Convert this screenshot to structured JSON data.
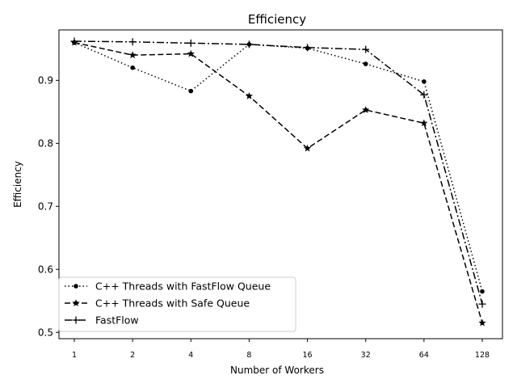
{
  "chart_data": {
    "type": "line",
    "title": "Efficiency",
    "xlabel": "Number of Workers",
    "ylabel": "Efficiency",
    "x_categories": [
      "1",
      "2",
      "4",
      "8",
      "16",
      "32",
      "64",
      "128"
    ],
    "ylim": [
      0.49,
      0.98
    ],
    "yticks": [
      0.5,
      0.6,
      0.7,
      0.8,
      0.9
    ],
    "ytick_labels": [
      "0.5",
      "0.6",
      "0.7",
      "0.8",
      "0.9"
    ],
    "grid": false,
    "legend_position": "lower-left",
    "series": [
      {
        "name": "C++ Threads with FastFlow Queue",
        "style": "dotted",
        "marker": "dot",
        "values": [
          0.96,
          0.92,
          0.883,
          0.957,
          0.951,
          0.926,
          0.898,
          0.565
        ]
      },
      {
        "name": "C++ Threads with Safe Queue",
        "style": "dashed",
        "marker": "star",
        "values": [
          0.96,
          0.94,
          0.942,
          0.875,
          0.792,
          0.853,
          0.832,
          0.515
        ]
      },
      {
        "name": "FastFlow",
        "style": "dashdot",
        "marker": "plus",
        "values": [
          0.962,
          0.961,
          0.959,
          0.957,
          0.952,
          0.949,
          0.877,
          0.545
        ]
      }
    ]
  }
}
